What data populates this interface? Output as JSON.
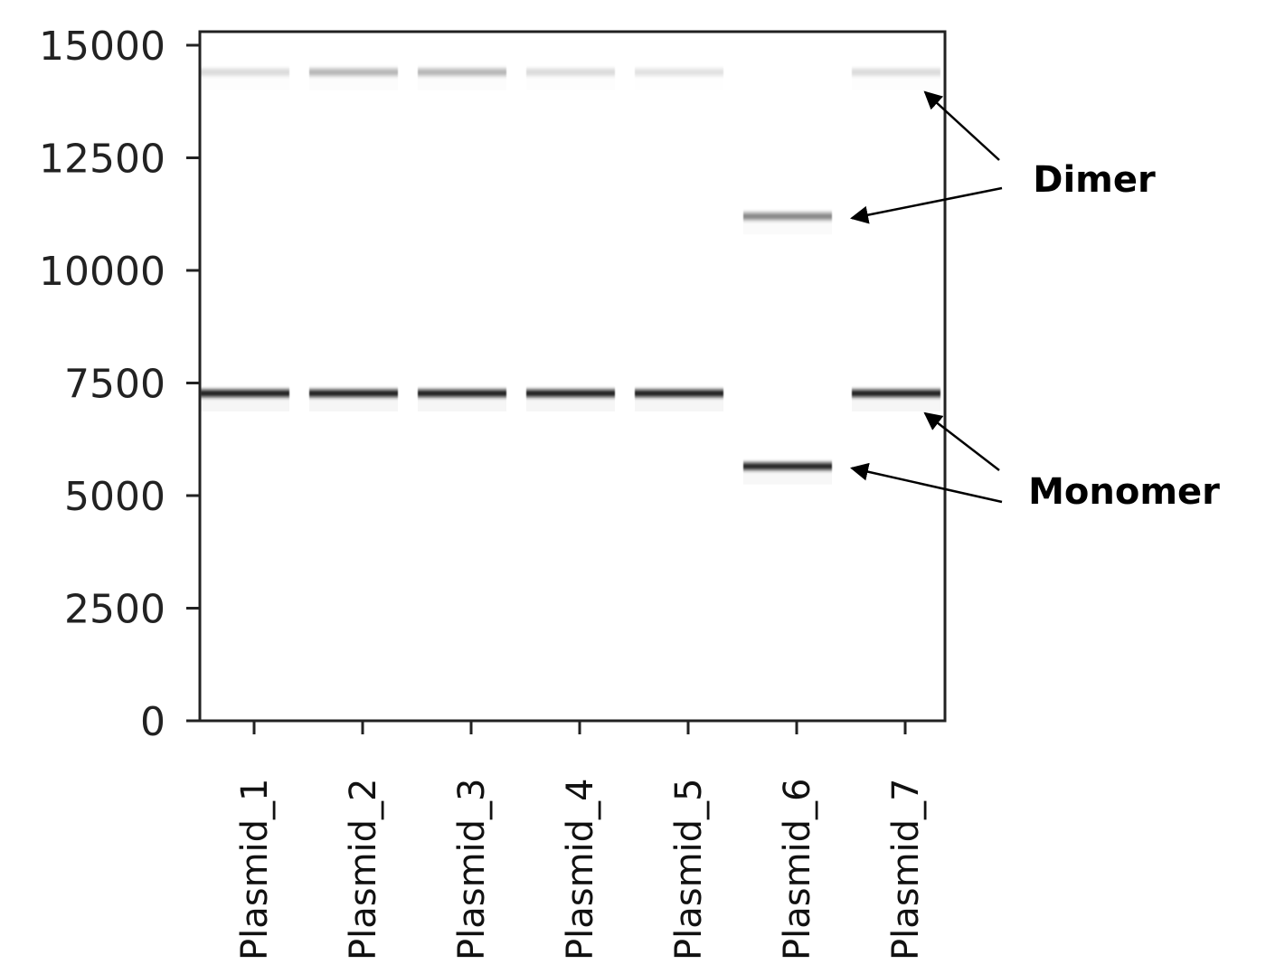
{
  "chart_data": {
    "type": "heatmap",
    "title": "",
    "xlabel": "",
    "ylabel": "",
    "ylim": [
      0,
      15300
    ],
    "yticks": [
      0,
      2500,
      5000,
      7500,
      10000,
      12500,
      15000
    ],
    "categories": [
      "Plasmid_1",
      "Plasmid_2",
      "Plasmid_3",
      "Plasmid_4",
      "Plasmid_5",
      "Plasmid_6",
      "Plasmid_7"
    ],
    "bands": [
      {
        "lane": "Plasmid_1",
        "size": 14400,
        "intensity": 0.15
      },
      {
        "lane": "Plasmid_1",
        "size": 7270,
        "intensity": 0.95
      },
      {
        "lane": "Plasmid_2",
        "size": 14400,
        "intensity": 0.3
      },
      {
        "lane": "Plasmid_2",
        "size": 7270,
        "intensity": 0.95
      },
      {
        "lane": "Plasmid_3",
        "size": 14400,
        "intensity": 0.3
      },
      {
        "lane": "Plasmid_3",
        "size": 7270,
        "intensity": 0.95
      },
      {
        "lane": "Plasmid_4",
        "size": 14400,
        "intensity": 0.15
      },
      {
        "lane": "Plasmid_4",
        "size": 7270,
        "intensity": 0.95
      },
      {
        "lane": "Plasmid_5",
        "size": 14400,
        "intensity": 0.12
      },
      {
        "lane": "Plasmid_5",
        "size": 7270,
        "intensity": 0.95
      },
      {
        "lane": "Plasmid_6",
        "size": 11200,
        "intensity": 0.5
      },
      {
        "lane": "Plasmid_6",
        "size": 5650,
        "intensity": 0.92
      },
      {
        "lane": "Plasmid_7",
        "size": 14400,
        "intensity": 0.15
      },
      {
        "lane": "Plasmid_7",
        "size": 7270,
        "intensity": 0.95
      }
    ],
    "annotations": [
      {
        "text": "Dimer",
        "targets": [
          {
            "lane": "Plasmid_7",
            "size": 14400
          },
          {
            "lane": "Plasmid_6",
            "size": 11200
          }
        ]
      },
      {
        "text": "Monomer",
        "targets": [
          {
            "lane": "Plasmid_7",
            "size": 7270
          },
          {
            "lane": "Plasmid_6",
            "size": 5650
          }
        ]
      }
    ],
    "grid": false,
    "band_color": "#111111"
  }
}
